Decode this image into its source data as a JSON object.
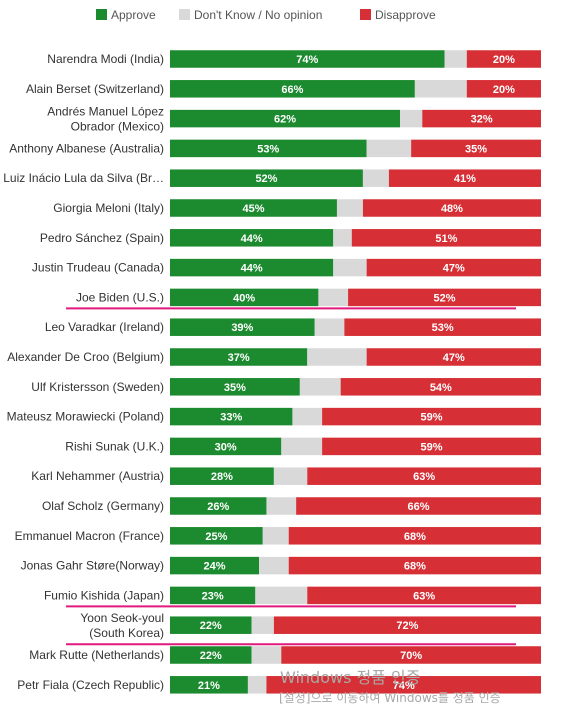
{
  "chart_data": {
    "type": "bar",
    "orientation": "horizontal",
    "stacked": true,
    "legend": {
      "placement": "top",
      "items": [
        {
          "name": "Approve",
          "color": "#1c8a2f"
        },
        {
          "name": "Don't Know / No opinion",
          "color": "#d9d9d9"
        },
        {
          "name": "Disapprove",
          "color": "#d62f35"
        }
      ]
    },
    "categories": [
      [
        "Narendra Modi (India)"
      ],
      [
        "Alain Berset (Switzerland)"
      ],
      [
        "Andrés Manuel López",
        "Obrador (Mexico)"
      ],
      [
        "Anthony Albanese (Australia)"
      ],
      [
        "Luiz Inácio Lula da Silva (Br…"
      ],
      [
        "Giorgia Meloni (Italy)"
      ],
      [
        "Pedro Sánchez (Spain)"
      ],
      [
        "Justin Trudeau (Canada)"
      ],
      [
        "Joe Biden (U.S.)"
      ],
      [
        "Leo Varadkar (Ireland)"
      ],
      [
        "Alexander De Croo (Belgium)"
      ],
      [
        "Ulf Kristersson (Sweden)"
      ],
      [
        "Mateusz Morawiecki (Poland)"
      ],
      [
        "Rishi Sunak (U.K.)"
      ],
      [
        "Karl Nehammer (Austria)"
      ],
      [
        "Olaf Scholz (Germany)"
      ],
      [
        "Emmanuel Macron (France)"
      ],
      [
        "Jonas Gahr Støre(Norway)"
      ],
      [
        "Fumio Kishida (Japan)"
      ],
      [
        "Yoon Seok-youl",
        "(South Korea)"
      ],
      [
        "Mark Rutte (Netherlands)"
      ],
      [
        "Petr Fiala (Czech Republic)"
      ]
    ],
    "series": [
      {
        "name": "Approve",
        "values": [
          74,
          66,
          62,
          53,
          52,
          45,
          44,
          44,
          40,
          39,
          37,
          35,
          33,
          30,
          28,
          26,
          25,
          24,
          23,
          22,
          22,
          21
        ]
      },
      {
        "name": "Don't Know / No opinion",
        "values": [
          6,
          14,
          6,
          12,
          7,
          7,
          5,
          9,
          8,
          8,
          16,
          11,
          8,
          11,
          9,
          8,
          7,
          8,
          14,
          6,
          8,
          5
        ]
      },
      {
        "name": "Disapprove",
        "values": [
          20,
          20,
          32,
          35,
          41,
          48,
          51,
          47,
          52,
          53,
          47,
          54,
          59,
          59,
          63,
          66,
          68,
          68,
          63,
          72,
          70,
          74
        ]
      }
    ],
    "value_label_suffix": "%",
    "xlim": [
      0,
      100
    ],
    "grid": false,
    "highlighted_categories": [
      "Joe Biden (U.S.)",
      "Fumio Kishida (Japan)",
      "Yoon Seok-youl (South Korea)"
    ],
    "highlight_color": "#e0197d"
  },
  "watermark": {
    "title": "Windows 정품 인증",
    "subtitle": "[설정]으로 이동하여 Windows를 정품 인증"
  }
}
